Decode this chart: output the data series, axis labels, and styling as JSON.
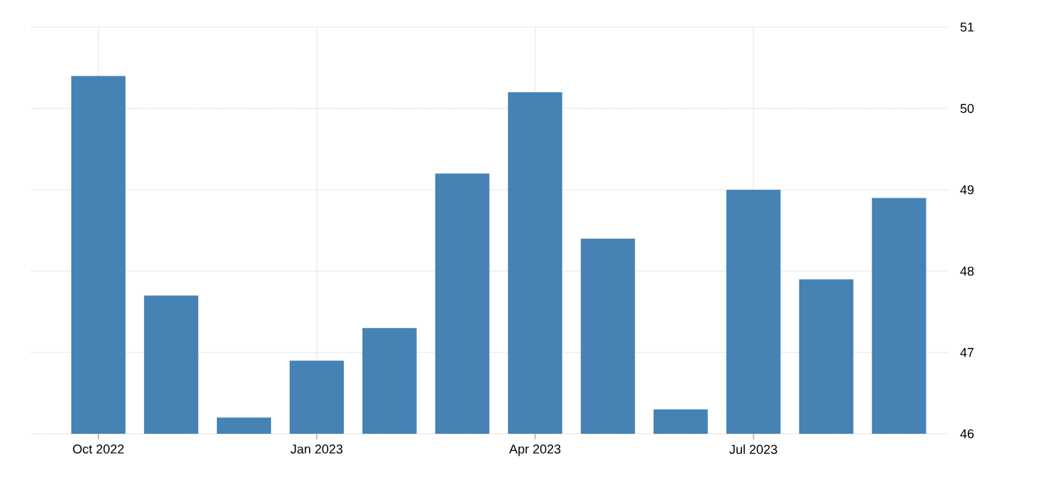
{
  "chart_data": {
    "type": "bar",
    "categories": [
      "Oct 2022",
      null,
      null,
      "Jan 2023",
      null,
      null,
      "Apr 2023",
      null,
      null,
      "Jul 2023",
      null,
      null
    ],
    "values": [
      50.4,
      47.7,
      46.2,
      46.9,
      47.3,
      49.2,
      50.2,
      48.4,
      46.3,
      49.0,
      47.9,
      48.9
    ],
    "color": "#4682b4",
    "ylim": [
      46,
      51
    ],
    "yticks": [
      46,
      47,
      48,
      49,
      50,
      51
    ],
    "grid": true
  }
}
